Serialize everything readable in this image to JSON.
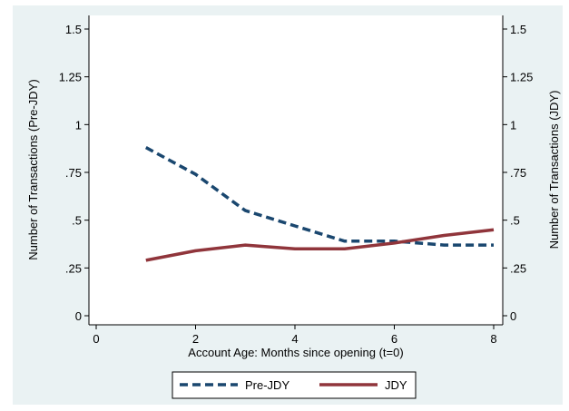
{
  "chart_data": {
    "type": "line",
    "xlabel": "Account Age: Months since opening (t=0)",
    "ylabel_left": "Number of Transactions (Pre-JDY)",
    "ylabel_right": "Number of Transactions (JDY)",
    "xlim": [
      0,
      8
    ],
    "ylim": [
      0,
      1.5
    ],
    "x_ticks": [
      0,
      2,
      4,
      6,
      8
    ],
    "x_tick_labels": [
      "0",
      "2",
      "4",
      "6",
      "8"
    ],
    "y_ticks": [
      0,
      0.25,
      0.5,
      0.75,
      1,
      1.25,
      1.5
    ],
    "y_tick_labels": [
      "0",
      ".25",
      ".5",
      ".75",
      "1",
      "1.25",
      "1.5"
    ],
    "grid": false,
    "legend_position": "bottom-center",
    "colors": {
      "pre_jdy": "#1a476f",
      "jdy": "#90353b",
      "outer_bg": "#eaf2f3",
      "plot_bg": "#ffffff"
    },
    "series": [
      {
        "name": "Pre-JDY",
        "style": "dashed",
        "x": [
          1,
          2,
          3,
          4,
          5,
          6,
          7,
          8
        ],
        "values": [
          0.88,
          0.74,
          0.55,
          0.47,
          0.39,
          0.39,
          0.37,
          0.37
        ]
      },
      {
        "name": "JDY",
        "style": "solid",
        "x": [
          1,
          2,
          3,
          4,
          5,
          6,
          7,
          8
        ],
        "values": [
          0.29,
          0.34,
          0.37,
          0.35,
          0.35,
          0.38,
          0.42,
          0.45
        ]
      }
    ]
  }
}
